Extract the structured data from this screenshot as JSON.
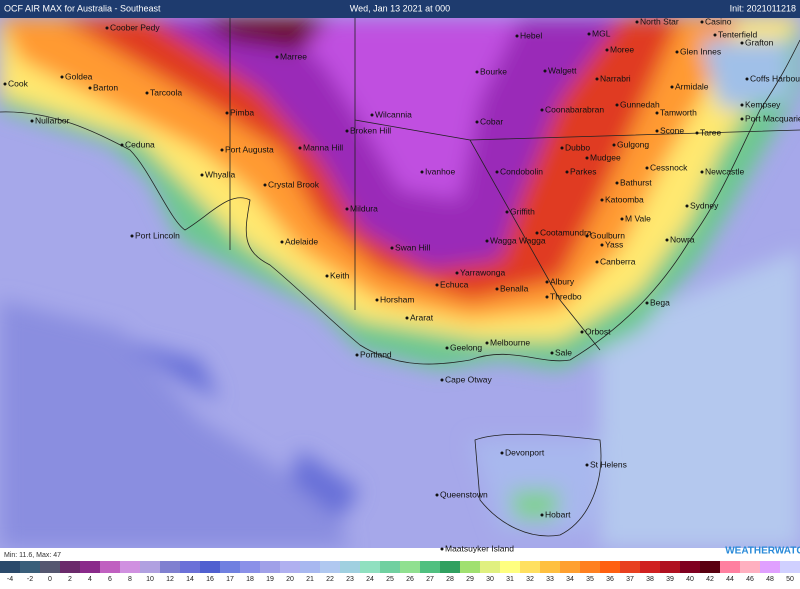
{
  "header": {
    "title": "OCF AIR MAX for Australia - Southeast",
    "date": "Wed, Jan 13 2021 at 000",
    "init": "Init: 2021011218"
  },
  "places": [
    "Coober Pedy",
    "Marree",
    "Cook",
    "Goldea",
    "Barton",
    "Tarcoola",
    "Nullarbor",
    "Pimba",
    "Ceduna",
    "Port Augusta",
    "Whyalla",
    "Crystal Brook",
    "Port Lincoln",
    "Adelaide",
    "Keith",
    "Manna Hill",
    "Broken Hill",
    "Wilcannia",
    "Ivanhoe",
    "Mildura",
    "Swan Hill",
    "Echuca",
    "Horsham",
    "Ararat",
    "Portland",
    "Geelong",
    "Melbourne",
    "Cape Otway",
    "Sale",
    "Bourke",
    "Hebel",
    "MGL",
    "Walgett",
    "Moree",
    "Narrabri",
    "Gunnedah",
    "Coonabarabran",
    "Cobar",
    "Condobolin",
    "Dubbo",
    "Parkes",
    "Mudgee",
    "Griffith",
    "Cootamundra",
    "Wagga Wagga",
    "Yarrawonga",
    "Benalla",
    "Albury",
    "Thredbo",
    "Orbost",
    "Canberra",
    "Yass",
    "Goulburn",
    "Bega",
    "Katoomba",
    "Bathurst",
    "Cessnock",
    "Newcastle",
    "Sydney",
    "Nowra",
    "M Vale",
    "Gulgong",
    "Scone",
    "Tamworth",
    "Armidale",
    "Glen Innes",
    "Tenterfield",
    "Casino",
    "North Star",
    "Grafton",
    "Coffs Harbour",
    "Kempsey",
    "Port Macquarie",
    "Taree",
    "Devonport",
    "St Helens",
    "Queenstown",
    "Hobart",
    "Maatsuyker Island"
  ],
  "legend": [
    {
      "label": "-4",
      "color": "#2b4a6b"
    },
    {
      "label": "-2",
      "color": "#3a5f7a"
    },
    {
      "label": "0",
      "color": "#555770"
    },
    {
      "label": "2",
      "color": "#6b2a6b"
    },
    {
      "label": "4",
      "color": "#8a2a8a"
    },
    {
      "label": "6",
      "color": "#c060c0"
    },
    {
      "label": "8",
      "color": "#d090e0"
    },
    {
      "label": "10",
      "color": "#b0a0e0"
    },
    {
      "label": "12",
      "color": "#8080d0"
    },
    {
      "label": "14",
      "color": "#6b70d8"
    },
    {
      "label": "16",
      "color": "#5060d0"
    },
    {
      "label": "17",
      "color": "#7080e0"
    },
    {
      "label": "18",
      "color": "#8a90e8"
    },
    {
      "label": "19",
      "color": "#a0a0e8"
    },
    {
      "label": "20",
      "color": "#b0b0f0"
    },
    {
      "label": "21",
      "color": "#a8b8f0"
    },
    {
      "label": "22",
      "color": "#b0c8f0"
    },
    {
      "label": "23",
      "color": "#a0d0e0"
    },
    {
      "label": "24",
      "color": "#90e0c0"
    },
    {
      "label": "25",
      "color": "#70d0a0"
    },
    {
      "label": "26",
      "color": "#90e090"
    },
    {
      "label": "27",
      "color": "#50c080"
    },
    {
      "label": "28",
      "color": "#30a060"
    },
    {
      "label": "29",
      "color": "#a0e070"
    },
    {
      "label": "30",
      "color": "#e0f080"
    },
    {
      "label": "31",
      "color": "#ffff80"
    },
    {
      "label": "32",
      "color": "#ffe060"
    },
    {
      "label": "33",
      "color": "#ffc040"
    },
    {
      "label": "34",
      "color": "#ffa030"
    },
    {
      "label": "35",
      "color": "#ff8020"
    },
    {
      "label": "36",
      "color": "#ff6010"
    },
    {
      "label": "37",
      "color": "#e84020"
    },
    {
      "label": "38",
      "color": "#d02020"
    },
    {
      "label": "39",
      "color": "#b01020"
    },
    {
      "label": "40",
      "color": "#800020"
    },
    {
      "label": "42",
      "color": "#5a0010"
    },
    {
      "label": "44",
      "color": "#ff80a0"
    },
    {
      "label": "46",
      "color": "#ffb0c0"
    },
    {
      "label": "48",
      "color": "#e0a0ff"
    },
    {
      "label": "50",
      "color": "#d0d0ff"
    }
  ],
  "stats": "Min: 11.6, Max: 47",
  "logo": "WEATHERWATCH"
}
